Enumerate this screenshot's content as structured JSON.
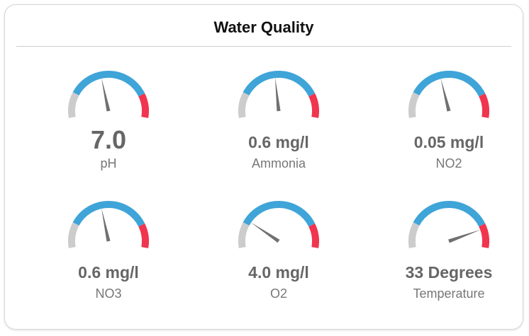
{
  "card": {
    "title": "Water Quality"
  },
  "colors": {
    "low": "#cccccc",
    "normal": "#3fa4d8",
    "high": "#f0354f",
    "needle": "#707070",
    "value_text": "#666666",
    "label_text": "#777777"
  },
  "gauges": [
    {
      "value": "7.0",
      "label": "pH",
      "needle_fraction": 0.44
    },
    {
      "value": "0.6 mg/l",
      "label": "Ammonia",
      "needle_fraction": 0.47
    },
    {
      "value": "0.05 mg/l",
      "label": "NO2",
      "needle_fraction": 0.43
    },
    {
      "value": "0.6 mg/l",
      "label": "NO3",
      "needle_fraction": 0.44
    },
    {
      "value": "4.0 mg/l",
      "label": "O2",
      "needle_fraction": 0.22
    },
    {
      "value": "33 Degrees",
      "label": "Temperature",
      "needle_fraction": 0.85
    }
  ]
}
